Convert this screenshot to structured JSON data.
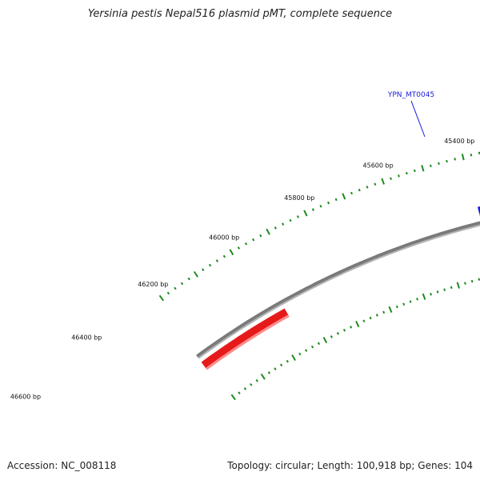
{
  "title": "Yersinia pestis Nepal516 plasmid pMT, complete sequence",
  "footer": {
    "accession_label": "Accession:",
    "accession": "NC_008118",
    "topology_label": "Topology:",
    "topology": "circular",
    "length_label": "Length:",
    "length": "100,918 bp",
    "genes_label": "Genes:",
    "genes": "104"
  },
  "colors": {
    "backbone": "#7a7a7a",
    "ticks": "#1e8a1e",
    "forward_gene": "#1a1ae6",
    "reverse_gene": "#e61a1a",
    "gene_label": "#1a1ad8"
  },
  "ticks": [
    {
      "label": "45400 bp"
    },
    {
      "label": "45600 bp"
    },
    {
      "label": "45800 bp"
    },
    {
      "label": "46000 bp"
    },
    {
      "label": "46200 bp"
    },
    {
      "label": "46400 bp"
    },
    {
      "label": "46600 bp"
    }
  ],
  "genes": [
    {
      "name": "YPN_MT0045",
      "strand": "forward"
    },
    {
      "name": "",
      "strand": "reverse"
    }
  ]
}
